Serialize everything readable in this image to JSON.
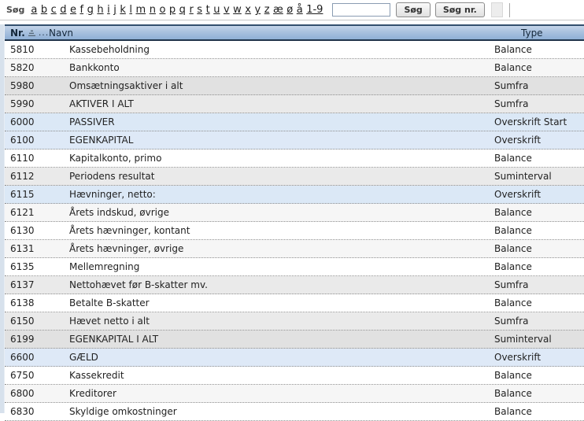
{
  "toolbar": {
    "search_label": "Søg",
    "letters": [
      "a",
      "b",
      "c",
      "d",
      "e",
      "f",
      "g",
      "h",
      "i",
      "j",
      "k",
      "l",
      "m",
      "n",
      "o",
      "p",
      "q",
      "r",
      "s",
      "t",
      "u",
      "v",
      "w",
      "x",
      "y",
      "z",
      "æ",
      "ø",
      "å",
      "1-9"
    ],
    "search_input_value": "",
    "search_button_label": "Søg",
    "search_nr_button_label": "Søg nr."
  },
  "table": {
    "columns": {
      "nr": "Nr.",
      "navn": "Navn",
      "type": "Type"
    },
    "sort_icon": "sort-ascending-icon",
    "sort_suffix": "...",
    "rows": [
      {
        "nr": "5810",
        "navn": "Kassebeholdning",
        "type": "Balance"
      },
      {
        "nr": "5820",
        "navn": "Bankkonto",
        "type": "Balance"
      },
      {
        "nr": "5980",
        "navn": "Omsætningsaktiver i alt",
        "type": "Sumfra"
      },
      {
        "nr": "5990",
        "navn": "AKTIVER I ALT",
        "type": "Sumfra"
      },
      {
        "nr": "6000",
        "navn": "PASSIVER",
        "type": "Overskrift Start"
      },
      {
        "nr": "6100",
        "navn": "EGENKAPITAL",
        "type": "Overskrift"
      },
      {
        "nr": "6110",
        "navn": "Kapitalkonto, primo",
        "type": "Balance"
      },
      {
        "nr": "6112",
        "navn": "Periodens resultat",
        "type": "Suminterval"
      },
      {
        "nr": "6115",
        "navn": "Hævninger, netto:",
        "type": "Overskrift"
      },
      {
        "nr": "6121",
        "navn": "Årets indskud, øvrige",
        "type": "Balance"
      },
      {
        "nr": "6130",
        "navn": "Årets hævninger, kontant",
        "type": "Balance"
      },
      {
        "nr": "6131",
        "navn": "Årets hævninger, øvrige",
        "type": "Balance"
      },
      {
        "nr": "6135",
        "navn": "Mellemregning",
        "type": "Balance"
      },
      {
        "nr": "6137",
        "navn": "Nettohævet før B-skatter mv.",
        "type": "Sumfra"
      },
      {
        "nr": "6138",
        "navn": "Betalte B-skatter",
        "type": "Balance"
      },
      {
        "nr": "6150",
        "navn": "Hævet netto i alt",
        "type": "Sumfra"
      },
      {
        "nr": "6199",
        "navn": "EGENKAPITAL I ALT",
        "type": "Suminterval"
      },
      {
        "nr": "6600",
        "navn": "GÆLD",
        "type": "Overskrift"
      },
      {
        "nr": "6750",
        "navn": "Kassekredit",
        "type": "Balance"
      },
      {
        "nr": "6800",
        "navn": "Kreditorer",
        "type": "Balance"
      },
      {
        "nr": "6830",
        "navn": "Skyldige omkostninger",
        "type": "Balance"
      }
    ]
  },
  "colors": {
    "header_gradient_top": "#c5d5e9",
    "header_gradient_bottom": "#8fb0d6",
    "header_border_dark": "#20344a",
    "row_balance": "#ffffff",
    "row_sum": "#e1e1e1",
    "row_overskrift": "#dbe8f6",
    "left_strip": "#d7e1ec",
    "dotted_separator": "#8f8f8f"
  }
}
